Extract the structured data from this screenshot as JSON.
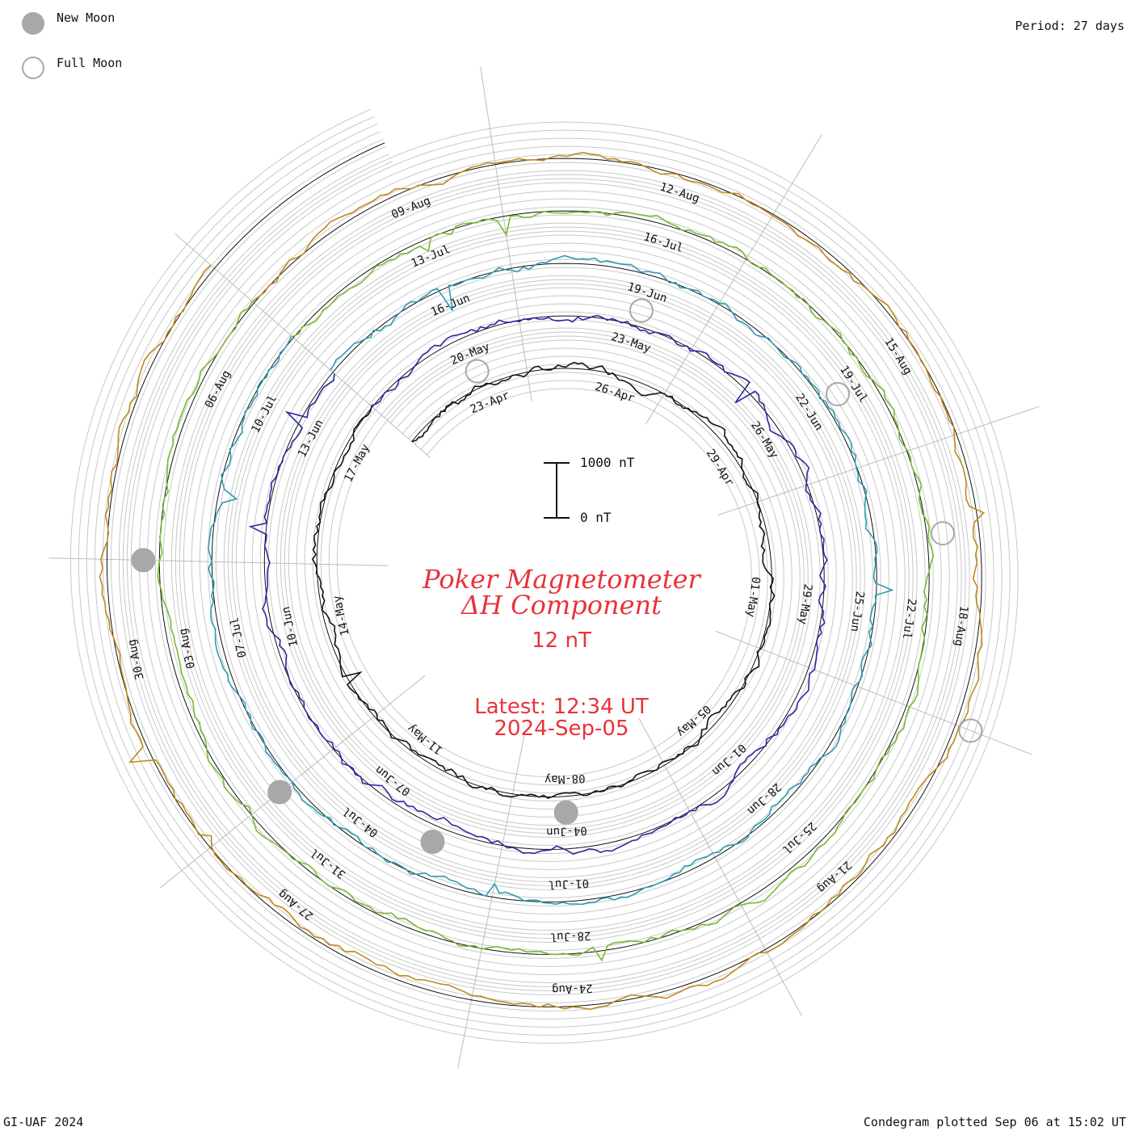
{
  "legend": {
    "new_moon_label": "New Moon",
    "full_moon_label": "Full Moon",
    "new_moon_color": "#a8a8a8",
    "full_moon_color": "#a8a8a8"
  },
  "header": {
    "period": "Period: 27 days"
  },
  "center": {
    "title_line1": "Poker Magnetometer",
    "title_line2": "ΔH Component",
    "current_value": "12 nT",
    "latest_line1": "Latest: 12:34 UT",
    "latest_line2": "2024-Sep-05",
    "text_color": "#e8333a"
  },
  "scale_bar": {
    "top_label": "1000 nT",
    "bottom_label": "0 nT"
  },
  "footer": {
    "left": "GI-UAF 2024",
    "right": "Condegram plotted Sep 06 at 15:02 UT"
  },
  "chart_data": {
    "type": "line",
    "layout": "spiral-condegram",
    "period_days": 27,
    "start_date": "2024-04-21",
    "end_date": "2024-09-05",
    "series": [
      {
        "color": "#111122",
        "date_labels": [
          "23-Apr",
          "26-Apr",
          "29-Apr",
          "01-May",
          "05-May",
          "08-May",
          "11-May",
          "14-May",
          "17-May"
        ]
      },
      {
        "color": "#2a2aa0",
        "date_labels": [
          "20-May",
          "23-May",
          "26-May",
          "29-May",
          "01-Jun",
          "04-Jun",
          "07-Jun",
          "10-Jun",
          "13-Jun"
        ]
      },
      {
        "color": "#2e9cb4",
        "date_labels": [
          "16-Jun",
          "19-Jun",
          "22-Jun",
          "25-Jun",
          "28-Jun",
          "01-Jul",
          "04-Jul",
          "07-Jul",
          "10-Jul"
        ]
      },
      {
        "color": "#7ab832",
        "date_labels": [
          "13-Jul",
          "16-Jul",
          "19-Jul",
          "22-Jul",
          "25-Jul",
          "28-Jul",
          "31-Jul",
          "03-Aug",
          "06-Aug"
        ]
      },
      {
        "color": "#c08a1c",
        "date_labels": [
          "09-Aug",
          "12-Aug",
          "15-Aug",
          "18-Aug",
          "21-Aug",
          "24-Aug",
          "27-Aug",
          "30-Aug"
        ]
      }
    ],
    "moon_phases": {
      "new_moon": [
        "2024-05-08",
        "2024-06-06",
        "2024-07-05",
        "2024-08-04"
      ],
      "full_moon": [
        "2024-04-23",
        "2024-05-23",
        "2024-06-22",
        "2024-07-21",
        "2024-08-19"
      ]
    },
    "radial_scale_nT": 1000
  }
}
